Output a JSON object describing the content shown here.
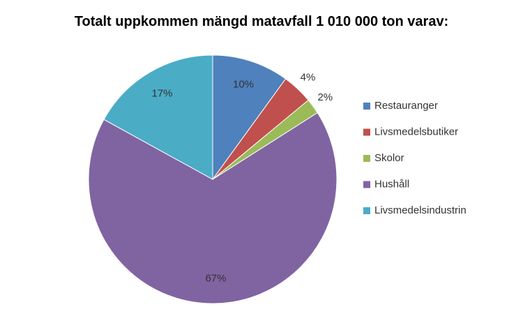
{
  "chart_data": {
    "type": "pie",
    "title": "Totalt uppkommen mängd matavfall 1 010 000 ton varav:",
    "categories": [
      "Restauranger",
      "Livsmedelsbutiker",
      "Skolor",
      "Hushåll",
      "Livsmedelsindustrin"
    ],
    "values": [
      10,
      4,
      2,
      67,
      17
    ],
    "value_labels": [
      "10%",
      "4%",
      "2%",
      "67%",
      "17%"
    ],
    "colors": [
      "#4f81bd",
      "#c0504d",
      "#9bbb59",
      "#8064a2",
      "#4bacc6"
    ],
    "legend": "right"
  }
}
